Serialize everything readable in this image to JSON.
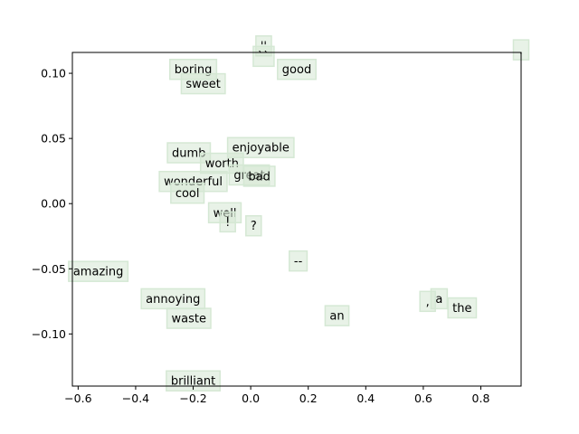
{
  "chart_data": {
    "type": "scatter",
    "title": "",
    "xlabel": "",
    "ylabel": "",
    "xlim": [
      -0.62,
      0.94
    ],
    "ylim": [
      -0.14,
      0.116
    ],
    "xticks": [
      -0.6,
      -0.4,
      -0.2,
      0.0,
      0.2,
      0.4,
      0.6,
      0.8
    ],
    "xtick_labels": [
      "−0.6",
      "−0.4",
      "−0.2",
      "0.0",
      "0.2",
      "0.4",
      "0.6",
      "0.8"
    ],
    "yticks": [
      -0.1,
      -0.05,
      0.0,
      0.05,
      0.1
    ],
    "ytick_labels": [
      "−0.10",
      "−0.05",
      "0.00",
      "0.05",
      "0.10"
    ],
    "grid": false,
    "box_color": "#d5e8d4",
    "points": [
      {
        "label": "''",
        "x": 0.045,
        "y": 0.121
      },
      {
        "label": "``",
        "x": 0.045,
        "y": 0.113
      },
      {
        "label": ".",
        "x": 0.94,
        "y": 0.118
      },
      {
        "label": "boring",
        "x": -0.2,
        "y": 0.103
      },
      {
        "label": "good",
        "x": 0.16,
        "y": 0.103
      },
      {
        "label": "sweet",
        "x": -0.165,
        "y": 0.092
      },
      {
        "label": "enjoyable",
        "x": 0.035,
        "y": 0.043
      },
      {
        "label": "dumb",
        "x": -0.215,
        "y": 0.039
      },
      {
        "label": "worth",
        "x": -0.1,
        "y": 0.031
      },
      {
        "label": "great",
        "x": -0.005,
        "y": 0.022
      },
      {
        "label": "bad",
        "x": 0.03,
        "y": 0.021
      },
      {
        "label": "wonderful",
        "x": -0.2,
        "y": 0.017
      },
      {
        "label": "cool",
        "x": -0.22,
        "y": 0.008
      },
      {
        "label": "well",
        "x": -0.09,
        "y": -0.007
      },
      {
        "label": "!",
        "x": -0.08,
        "y": -0.014
      },
      {
        "label": "?",
        "x": 0.01,
        "y": -0.017
      },
      {
        "label": "--",
        "x": 0.165,
        "y": -0.044
      },
      {
        "label": "amazing",
        "x": -0.53,
        "y": -0.052
      },
      {
        "label": "annoying",
        "x": -0.27,
        "y": -0.073
      },
      {
        "label": ",",
        "x": 0.615,
        "y": -0.075
      },
      {
        "label": "a",
        "x": 0.655,
        "y": -0.073
      },
      {
        "label": "the",
        "x": 0.735,
        "y": -0.08
      },
      {
        "label": "an",
        "x": 0.3,
        "y": -0.086
      },
      {
        "label": "waste",
        "x": -0.215,
        "y": -0.088
      },
      {
        "label": "brilliant",
        "x": -0.2,
        "y": -0.136
      }
    ]
  }
}
